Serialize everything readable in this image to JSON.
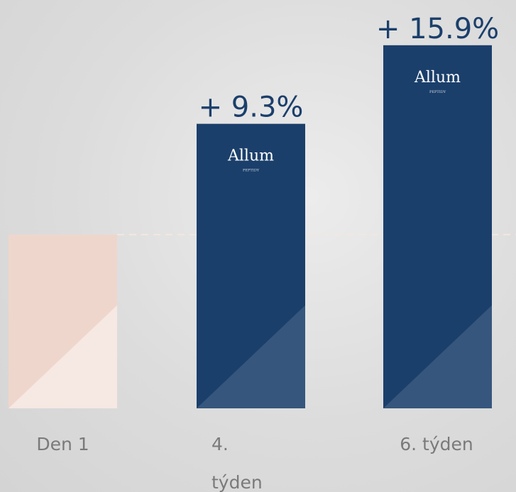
{
  "chart_data": {
    "type": "bar",
    "categories": [
      "Den 1",
      "4. týden",
      "6. týden"
    ],
    "values": [
      0,
      9.3,
      15.9
    ],
    "value_labels": [
      null,
      "+ 9.3%",
      "+ 15.9%"
    ],
    "colors": [
      "#efd6cc",
      "#1b3f6b",
      "#1b3f6b"
    ],
    "ylim": [
      -14.6,
      19.7
    ]
  },
  "brand": {
    "name": "Allum",
    "tagline": "PEPTIDY"
  }
}
